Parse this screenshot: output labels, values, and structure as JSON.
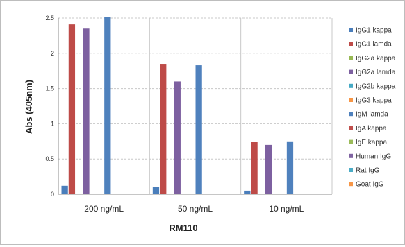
{
  "chart_data": {
    "type": "bar",
    "title": "",
    "xlabel": "RM110",
    "ylabel": "Abs (405nm)",
    "ylim": [
      0,
      2.5
    ],
    "yticks": [
      "0",
      "0.5",
      "1",
      "1.5",
      "2",
      "2.5"
    ],
    "ytick_values": [
      0,
      0.5,
      1,
      1.5,
      2,
      2.5
    ],
    "grid": true,
    "legend_position": "right",
    "categories": [
      "200 ng/mL",
      "50 ng/mL",
      "10 ng/mL"
    ],
    "series": [
      {
        "name": "IgG1 kappa",
        "color": "#4a7ebb",
        "values": [
          0.12,
          0.1,
          0.05
        ]
      },
      {
        "name": "IgG1 lamda",
        "color": "#be4b48",
        "values": [
          2.41,
          1.85,
          0.74
        ]
      },
      {
        "name": "IgG2a kappa",
        "color": "#98b954",
        "values": [
          0,
          0,
          0
        ]
      },
      {
        "name": "IgG2a lamda",
        "color": "#7d60a0",
        "values": [
          2.35,
          1.6,
          0.7
        ]
      },
      {
        "name": "IgG2b kappa",
        "color": "#46aac5",
        "values": [
          0,
          0,
          0
        ]
      },
      {
        "name": "IgG3 kappa",
        "color": "#f79646",
        "values": [
          0,
          0,
          0
        ]
      },
      {
        "name": "IgM lamda",
        "color": "#4f81bd",
        "values": [
          2.51,
          1.83,
          0.75
        ]
      },
      {
        "name": "IgA kappa",
        "color": "#c0504d",
        "values": [
          0,
          0,
          0
        ]
      },
      {
        "name": "IgE kappa",
        "color": "#9bbb59",
        "values": [
          0,
          0,
          0
        ]
      },
      {
        "name": "Human IgG",
        "color": "#8064a2",
        "values": [
          0,
          0,
          0
        ]
      },
      {
        "name": "Rat IgG",
        "color": "#4bacc6",
        "values": [
          0,
          0,
          0
        ]
      },
      {
        "name": "Goat IgG",
        "color": "#f79646",
        "values": [
          0,
          0,
          0
        ]
      }
    ]
  }
}
